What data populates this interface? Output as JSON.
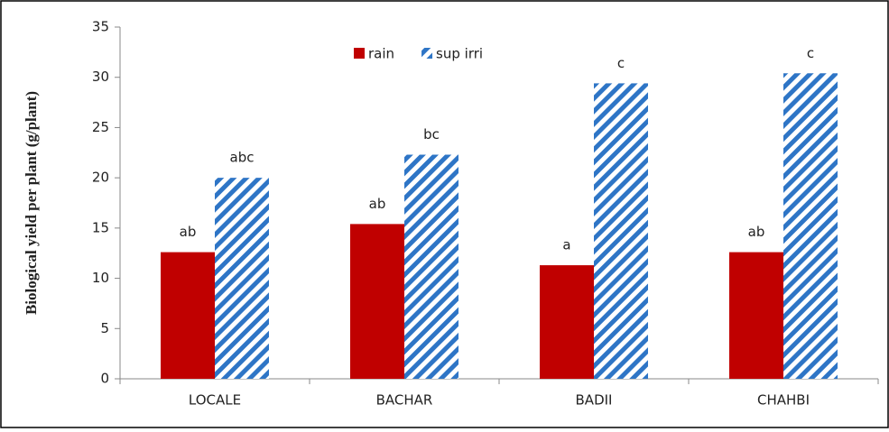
{
  "chart_data": {
    "type": "bar",
    "y_label": "Biological yield per plant (g/plant)",
    "categories": [
      "LOCALE",
      "BACHAR",
      "BADII",
      "CHAHBI"
    ],
    "series": [
      {
        "name": "rain",
        "color": "#c00000",
        "hatch": false,
        "values": [
          12.6,
          15.4,
          11.3,
          12.6
        ],
        "letters": [
          "ab",
          "ab",
          "a",
          "ab"
        ]
      },
      {
        "name": "sup irri",
        "color": "#2e75c6",
        "hatch": true,
        "values": [
          20.0,
          22.3,
          29.4,
          30.4
        ],
        "letters": [
          "abc",
          "bc",
          "c",
          "c"
        ]
      }
    ],
    "ylim": [
      0,
      35
    ],
    "yticks": [
      0,
      5,
      10,
      15,
      20,
      25,
      30,
      35
    ],
    "grid": false,
    "legend": "top"
  }
}
